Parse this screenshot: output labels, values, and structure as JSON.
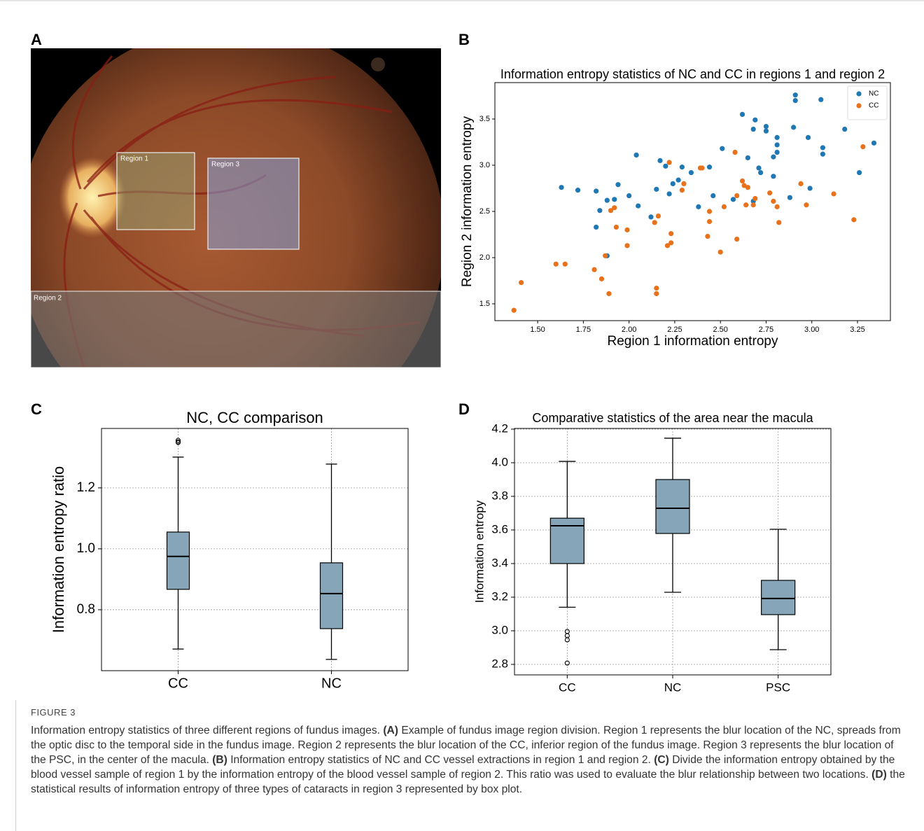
{
  "panel_labels": [
    "A",
    "B",
    "C",
    "D"
  ],
  "image": {
    "regions": [
      "Region 1",
      "Region 3",
      "Region 2"
    ]
  },
  "chart_data": [
    {
      "type": "scatter",
      "title": "Information entropy statistics of NC and CC in regions 1 and region 2",
      "x_label": "Region 1 information entropy",
      "y_label": "Region 2 information entropy",
      "xlim": [
        1.266,
        3.43
      ],
      "ylim": [
        1.318,
        3.894
      ],
      "xticks": [
        {
          "value": 1.5,
          "label": "1.50"
        },
        {
          "value": 1.75,
          "label": "1.75"
        },
        {
          "value": 2,
          "label": "2.00"
        },
        {
          "value": 2.25,
          "label": "2.25"
        },
        {
          "value": 2.5,
          "label": "2.50"
        },
        {
          "value": 2.75,
          "label": "2.75"
        },
        {
          "value": 3,
          "label": "3.00"
        },
        {
          "value": 3.25,
          "label": "3.25"
        }
      ],
      "yticks": [
        1.5,
        {
          "value": 2,
          "label": "2.0"
        },
        2.5,
        {
          "value": 3,
          "label": "3.0"
        },
        3.5
      ],
      "legend": "upper right",
      "series": [
        {
          "name": "NC",
          "color": "#1f77b4",
          "x": [
            2.91,
            2.91,
            3.05,
            2.62,
            2.69,
            2.75,
            2.75,
            2.81,
            2.81,
            2.81,
            2.68,
            2.9,
            3.18,
            2.98,
            3.06,
            3.06,
            3.34,
            3.26,
            2.79,
            2.71,
            2.72,
            2.65,
            2.57,
            2.68,
            2.79,
            2.88,
            2.99,
            2.46,
            2.51,
            2.44,
            2.34,
            2.38,
            2.29,
            2.27,
            2.2,
            2.17,
            2.24,
            2.15,
            2.22,
            2.05,
            2.0,
            1.94,
            2.04,
            1.88,
            1.92,
            1.84,
            1.82,
            1.63,
            1.72,
            1.82,
            1.88,
            2.12
          ],
          "values": [
            3.76,
            3.7,
            3.71,
            3.55,
            3.49,
            3.42,
            3.37,
            3.3,
            3.22,
            3.14,
            3.39,
            3.41,
            3.39,
            3.3,
            3.19,
            3.12,
            3.24,
            2.92,
            3.09,
            2.97,
            2.92,
            3.08,
            2.63,
            2.61,
            2.88,
            2.65,
            2.75,
            2.67,
            3.18,
            2.98,
            2.92,
            2.55,
            2.98,
            2.84,
            2.99,
            3.05,
            2.8,
            2.74,
            2.69,
            2.56,
            2.67,
            2.79,
            3.11,
            2.62,
            2.63,
            2.51,
            2.33,
            2.76,
            2.73,
            2.72,
            2.02,
            2.44
          ]
        },
        {
          "name": "CC",
          "color": "#e8711c",
          "x": [
            3.28,
            3.23,
            3.12,
            2.94,
            2.97,
            2.58,
            2.62,
            2.63,
            2.65,
            2.69,
            2.68,
            2.64,
            2.77,
            2.79,
            2.81,
            2.82,
            2.59,
            2.59,
            2.52,
            2.5,
            2.44,
            2.44,
            2.43,
            2.39,
            2.4,
            2.3,
            2.29,
            2.22,
            2.23,
            2.23,
            2.21,
            2.14,
            2.16,
            2.15,
            2.15,
            1.99,
            1.99,
            1.93,
            1.92,
            1.9,
            1.87,
            1.81,
            1.85,
            1.89,
            1.6,
            1.65,
            1.41,
            1.37
          ],
          "values": [
            3.2,
            2.41,
            2.69,
            2.8,
            2.57,
            3.14,
            2.83,
            2.78,
            2.76,
            2.64,
            2.57,
            2.57,
            2.7,
            2.61,
            2.55,
            2.38,
            2.67,
            2.2,
            2.55,
            2.06,
            2.5,
            2.39,
            2.23,
            2.97,
            2.97,
            2.8,
            2.73,
            3.03,
            2.26,
            2.16,
            2.13,
            2.38,
            2.45,
            1.67,
            1.61,
            2.3,
            2.13,
            2.33,
            2.54,
            2.51,
            2.02,
            1.87,
            1.77,
            1.61,
            1.93,
            1.93,
            1.73,
            1.43
          ]
        }
      ]
    },
    {
      "type": "box",
      "title": "NC, CC comparison",
      "y_label": "Information entropy ratio",
      "categories": [
        "CC",
        "NC"
      ],
      "color": "#87a5b8",
      "grid": true,
      "ylim": [
        0.6,
        1.395
      ],
      "yticks": [
        0.8,
        {
          "value": 1,
          "label": "1.0"
        },
        1.2
      ],
      "boxes": [
        {
          "whislo": 0.671,
          "q1": 0.867,
          "med": 0.975,
          "q3": 1.055,
          "whishi": 1.301,
          "fliers": [
            1.349,
            1.351,
            1.356
          ]
        },
        {
          "whislo": 0.637,
          "q1": 0.738,
          "med": 0.853,
          "q3": 0.954,
          "whishi": 1.278,
          "fliers": []
        }
      ]
    },
    {
      "type": "box",
      "title": "Comparative statistics of the area near the macula",
      "y_label": "Information entropy",
      "categories": [
        "CC",
        "NC",
        "PSC"
      ],
      "color": "#87a5b8",
      "grid": true,
      "ylim": [
        2.7375,
        4.204
      ],
      "yticks": [
        2.8,
        {
          "value": 3,
          "label": "3.0"
        },
        3.2,
        3.4,
        3.6,
        3.8,
        {
          "value": 4,
          "label": "4.0"
        },
        4.2
      ],
      "boxes": [
        {
          "whislo": 3.14,
          "q1": 3.4,
          "med": 3.625,
          "q3": 3.67,
          "whishi": 4.008,
          "fliers": [
            2.996,
            2.971,
            2.946,
            2.808
          ]
        },
        {
          "whislo": 3.229,
          "q1": 3.579,
          "med": 3.729,
          "q3": 3.9,
          "whishi": 4.146,
          "fliers": []
        },
        {
          "whislo": 2.8875,
          "q1": 3.096,
          "med": 3.192,
          "q3": 3.3,
          "whishi": 3.604,
          "fliers": []
        }
      ]
    }
  ],
  "caption": {
    "figure_label": "FIGURE 3",
    "intro": "Information entropy statistics of three different regions of fundus images.",
    "parts": [
      {
        "label": "(A)",
        "text": "Example of fundus image region division. Region 1 represents the blur location of the NC, spreads from the optic disc to the temporal side in the fundus image. Region 2 represents the blur location of the CC, inferior region of the fundus image. Region 3 represents the blur location of the PSC, in the center of the macula."
      },
      {
        "label": "(B)",
        "text": "Information entropy statistics of NC and CC vessel extractions in region 1 and region 2."
      },
      {
        "label": "(C)",
        "text": "Divide the information entropy obtained by the blood vessel sample of region 1 by the information entropy of the blood vessel sample of region 2. This ratio was used to evaluate the blur relationship between two locations."
      },
      {
        "label": "(D)",
        "text": "the statistical results of information entropy of three types of cataracts in region 3 represented by box plot."
      }
    ]
  }
}
